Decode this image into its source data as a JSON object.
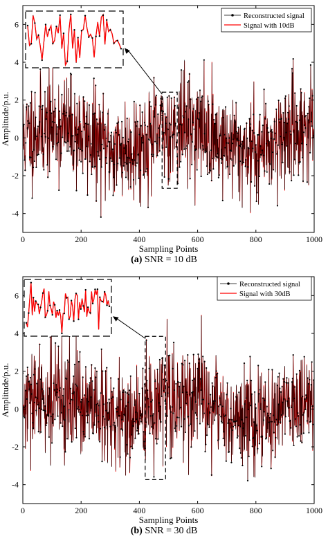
{
  "chart_data": [
    {
      "type": "line",
      "caption_letter": "(a)",
      "caption_text": " SNR = 10 dB",
      "xlabel": "Sampling Points",
      "ylabel": "Amplitude/p.u.",
      "xlim": [
        0,
        1000
      ],
      "ylim": [
        -5,
        7
      ],
      "xticks": [
        0,
        200,
        400,
        600,
        800,
        1000
      ],
      "yticks": [
        -4,
        -2,
        0,
        2,
        4,
        6
      ],
      "legend_position": "top-right",
      "zoom_window": [
        478,
        530
      ],
      "series": [
        {
          "name": "Reconstructed signal",
          "color": "#000000",
          "marker": "dot"
        },
        {
          "name": "Signal with 10dB",
          "color": "#ff0000",
          "marker": "none"
        }
      ],
      "signal_model": {
        "samples": 1000,
        "baseline_amplitude": 0.6,
        "noise_std": 1.35,
        "min": -4.5,
        "max": 5.5,
        "seed": 11
      }
    },
    {
      "type": "line",
      "caption_letter": "(b)",
      "caption_text": " SNR = 30 dB",
      "xlabel": "Sampling Points",
      "ylabel": "Amplitude/p.u.",
      "xlim": [
        0,
        1000
      ],
      "ylim": [
        -5,
        7
      ],
      "xticks": [
        0,
        200,
        400,
        600,
        800,
        1000
      ],
      "yticks": [
        -4,
        -2,
        0,
        2,
        4,
        6
      ],
      "legend_position": "top-right",
      "zoom_window": [
        420,
        490
      ],
      "series": [
        {
          "name": "Reconstructed signal",
          "color": "#000000",
          "marker": "dot"
        },
        {
          "name": "Signal with 30dB",
          "color": "#ff0000",
          "marker": "none"
        }
      ],
      "signal_model": {
        "samples": 1000,
        "baseline_amplitude": 0.6,
        "noise_std": 1.35,
        "min": -4.4,
        "max": 5.3,
        "seed": 29
      }
    }
  ]
}
